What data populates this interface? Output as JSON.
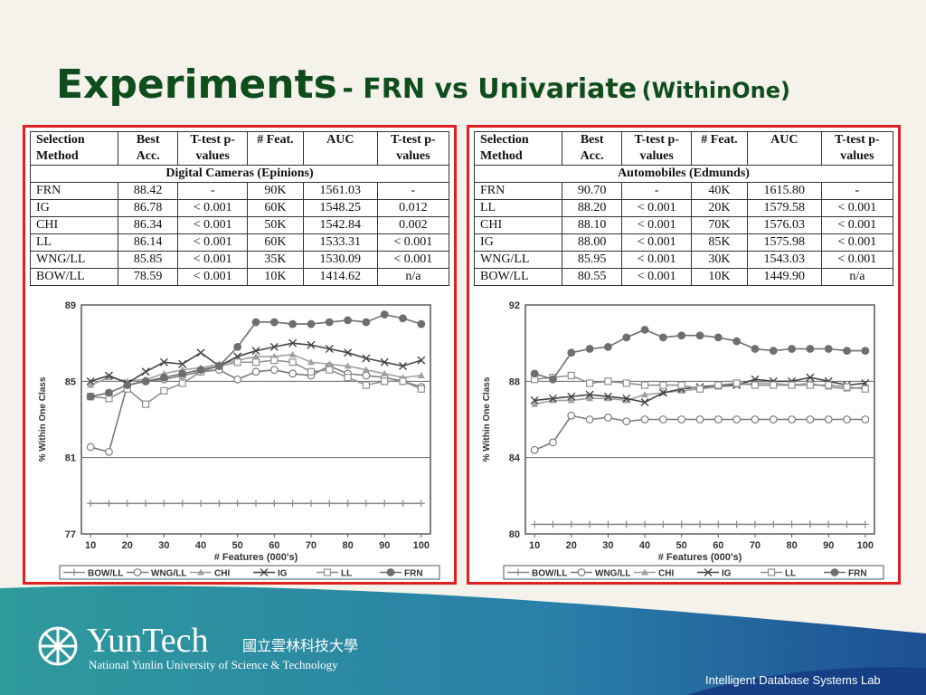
{
  "slide": {
    "title": "Experiments",
    "title_mid": "- FRN vs Univariate",
    "title_small": "(WithinOne)",
    "tables": [
      {
        "header": [
          "Selection Method",
          "Best Acc.",
          "T-test p-values",
          "# Feat.",
          "AUC",
          "T-test p-values"
        ],
        "caption": "Digital Cameras (Epinions)",
        "rows": [
          [
            "FRN",
            "88.42",
            "-",
            "90K",
            "1561.03",
            "-"
          ],
          [
            "IG",
            "86.78",
            "< 0.001",
            "60K",
            "1548.25",
            "0.012"
          ],
          [
            "CHI",
            "86.34",
            "< 0.001",
            "50K",
            "1542.84",
            "0.002"
          ],
          [
            "LL",
            "86.14",
            "< 0.001",
            "60K",
            "1533.31",
            "< 0.001"
          ],
          [
            "WNG/LL",
            "85.85",
            "< 0.001",
            "35K",
            "1530.09",
            "< 0.001"
          ],
          [
            "BOW/LL",
            "78.59",
            "< 0.001",
            "10K",
            "1414.62",
            "n/a"
          ]
        ]
      },
      {
        "header": [
          "Selection Method",
          "Best Acc.",
          "T-test p-values",
          "# Feat.",
          "AUC",
          "T-test p-values"
        ],
        "caption": "Automobiles (Edmunds)",
        "rows": [
          [
            "FRN",
            "90.70",
            "-",
            "40K",
            "1615.80",
            "-"
          ],
          [
            "LL",
            "88.20",
            "< 0.001",
            "20K",
            "1579.58",
            "< 0.001"
          ],
          [
            "CHI",
            "88.10",
            "< 0.001",
            "70K",
            "1576.03",
            "< 0.001"
          ],
          [
            "IG",
            "88.00",
            "< 0.001",
            "85K",
            "1575.98",
            "< 0.001"
          ],
          [
            "WNG/LL",
            "85.95",
            "< 0.001",
            "30K",
            "1543.03",
            "< 0.001"
          ],
          [
            "BOW/LL",
            "80.55",
            "< 0.001",
            "10K",
            "1449.90",
            "n/a"
          ]
        ]
      }
    ],
    "logo_name": "YunTech",
    "logo_chinese": "國立雲林科技大學",
    "logo_english": "National Yunlin University of Science & Technology",
    "lab": "Intelligent Database Systems Lab"
  },
  "chart_data": [
    {
      "type": "line",
      "x_label": "# Features (000's)",
      "y_label": "% Within One Class",
      "x": [
        10,
        15,
        20,
        25,
        30,
        35,
        40,
        45,
        50,
        55,
        60,
        65,
        70,
        75,
        80,
        85,
        90,
        95,
        100
      ],
      "xlim": [
        7.5,
        102.5
      ],
      "xticks": [
        10,
        20,
        30,
        40,
        50,
        60,
        70,
        80,
        90,
        100
      ],
      "ylim": [
        77,
        89
      ],
      "yticks": [
        77,
        81,
        85,
        89
      ],
      "grid": true,
      "series": [
        {
          "name": "BOW/LL",
          "color": "#8a8a8a",
          "marker": "plus",
          "values": [
            78.6,
            78.6,
            78.6,
            78.6,
            78.6,
            78.6,
            78.6,
            78.6,
            78.6,
            78.6,
            78.6,
            78.6,
            78.6,
            78.6,
            78.6,
            78.6,
            78.6,
            78.6,
            78.6
          ]
        },
        {
          "name": "WNG/LL",
          "color": "#7a7a7a",
          "marker": "circle-open",
          "values": [
            81.55,
            81.3,
            84.8,
            85.0,
            85.1,
            85.3,
            85.5,
            85.6,
            85.1,
            85.5,
            85.6,
            85.4,
            85.3,
            85.8,
            85.4,
            85.3,
            85.2,
            85.0,
            84.7
          ]
        },
        {
          "name": "CHI",
          "color": "#a0a0a0",
          "marker": "triangle",
          "values": [
            84.8,
            85.2,
            85.0,
            85.1,
            85.4,
            85.6,
            85.7,
            85.9,
            86.1,
            86.3,
            86.3,
            86.4,
            86.0,
            85.9,
            85.8,
            85.6,
            85.4,
            85.2,
            85.3
          ]
        },
        {
          "name": "IG",
          "color": "#444444",
          "marker": "x",
          "values": [
            85.0,
            85.3,
            84.9,
            85.5,
            86.0,
            85.9,
            86.5,
            85.8,
            86.3,
            86.6,
            86.8,
            87.0,
            86.9,
            86.7,
            86.5,
            86.2,
            86.0,
            85.8,
            86.1
          ]
        },
        {
          "name": "LL",
          "color": "#8f8f8f",
          "marker": "square-open",
          "values": [
            84.2,
            84.1,
            84.6,
            83.8,
            84.5,
            84.9,
            85.5,
            85.8,
            86.0,
            86.0,
            86.1,
            86.0,
            85.5,
            85.6,
            85.2,
            84.8,
            85.0,
            85.0,
            84.6
          ]
        },
        {
          "name": "FRN",
          "color": "#6e6e6e",
          "marker": "circle-filled",
          "values": [
            84.2,
            84.4,
            84.8,
            85.0,
            85.2,
            85.4,
            85.6,
            85.8,
            86.8,
            88.1,
            88.1,
            88.0,
            88.0,
            88.1,
            88.2,
            88.1,
            88.5,
            88.3,
            88.0
          ]
        }
      ]
    },
    {
      "type": "line",
      "x_label": "# Features (000's)",
      "y_label": "% Within One Class",
      "x": [
        10,
        15,
        20,
        25,
        30,
        35,
        40,
        45,
        50,
        55,
        60,
        65,
        70,
        75,
        80,
        85,
        90,
        95,
        100
      ],
      "xlim": [
        7.5,
        102.5
      ],
      "xticks": [
        10,
        20,
        30,
        40,
        50,
        60,
        70,
        80,
        90,
        100
      ],
      "ylim": [
        80,
        92
      ],
      "yticks": [
        80,
        84,
        88,
        92
      ],
      "grid": true,
      "series": [
        {
          "name": "BOW/LL",
          "color": "#8a8a8a",
          "marker": "plus",
          "values": [
            80.5,
            80.5,
            80.5,
            80.5,
            80.5,
            80.5,
            80.5,
            80.5,
            80.5,
            80.5,
            80.5,
            80.5,
            80.5,
            80.5,
            80.5,
            80.5,
            80.5,
            80.5,
            80.5
          ]
        },
        {
          "name": "WNG/LL",
          "color": "#7a7a7a",
          "marker": "circle-open",
          "values": [
            84.4,
            84.8,
            86.2,
            86.0,
            86.1,
            85.9,
            86.0,
            86.0,
            86.0,
            86.0,
            86.0,
            86.0,
            86.0,
            86.0,
            86.0,
            86.0,
            86.0,
            86.0,
            86.0
          ]
        },
        {
          "name": "CHI",
          "color": "#a0a0a0",
          "marker": "triangle",
          "values": [
            86.8,
            87.0,
            87.0,
            87.1,
            87.1,
            87.0,
            87.3,
            87.4,
            87.5,
            87.6,
            87.7,
            87.8,
            87.9,
            87.9,
            87.8,
            87.9,
            87.7,
            87.6,
            87.7
          ]
        },
        {
          "name": "IG",
          "color": "#444444",
          "marker": "x",
          "values": [
            87.0,
            87.1,
            87.2,
            87.3,
            87.2,
            87.1,
            86.9,
            87.4,
            87.6,
            87.7,
            87.8,
            87.8,
            88.1,
            88.0,
            88.0,
            88.2,
            88.0,
            87.8,
            87.9
          ]
        },
        {
          "name": "LL",
          "color": "#8f8f8f",
          "marker": "square-open",
          "values": [
            88.1,
            88.2,
            88.3,
            87.9,
            88.0,
            87.9,
            87.8,
            87.8,
            87.8,
            87.6,
            87.8,
            87.9,
            87.8,
            87.8,
            87.8,
            87.8,
            87.8,
            87.7,
            87.6
          ]
        },
        {
          "name": "FRN",
          "color": "#6e6e6e",
          "marker": "circle-filled",
          "values": [
            88.4,
            88.1,
            89.5,
            89.7,
            89.8,
            90.3,
            90.7,
            90.3,
            90.4,
            90.4,
            90.3,
            90.1,
            89.7,
            89.6,
            89.7,
            89.7,
            89.7,
            89.6,
            89.6
          ]
        }
      ]
    }
  ]
}
